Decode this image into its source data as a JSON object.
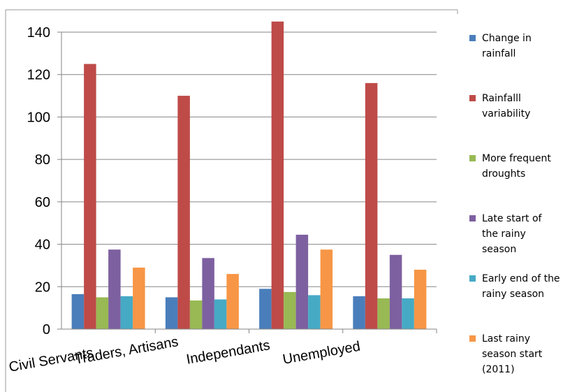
{
  "chart_data": {
    "type": "bar",
    "categories": [
      "Civil Servants",
      "Traders, Artisans",
      "Independants",
      "Unemployed"
    ],
    "series": [
      {
        "name": "Change in rainfall",
        "color": "#4a7ebb",
        "values": [
          16.5,
          15,
          19,
          15.5
        ]
      },
      {
        "name": "Rainfalll variability",
        "color": "#be4b48",
        "values": [
          125,
          110,
          145,
          116
        ]
      },
      {
        "name": "More frequent droughts",
        "color": "#98b954",
        "values": [
          15,
          13.5,
          17.5,
          14.5
        ]
      },
      {
        "name": "Late start of the rainy season",
        "color": "#7d60a0",
        "values": [
          37.5,
          33.5,
          44.5,
          35
        ]
      },
      {
        "name": "Early end of the rainy season",
        "color": "#46aac5",
        "values": [
          15.5,
          14,
          16,
          14.5
        ]
      },
      {
        "name": "Last rainy season start (2011)",
        "color": "#f79646",
        "values": [
          29,
          26,
          37.5,
          28
        ]
      }
    ],
    "yticks": [
      "0",
      "20",
      "40",
      "60",
      "80",
      "100",
      "120",
      "140"
    ],
    "ylim": [
      0,
      140
    ],
    "grid": true,
    "legend": "right"
  }
}
